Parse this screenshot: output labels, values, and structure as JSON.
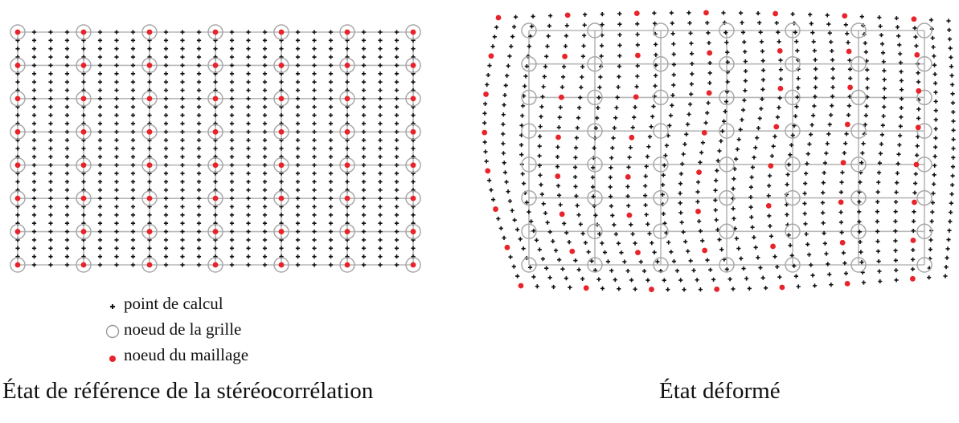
{
  "legend": {
    "calc_point": "point de calcul",
    "grid_node": "noeud de la grille",
    "mesh_node": "noeud du maillage"
  },
  "captions": {
    "reference": "État de référence de la stéréocorrélation",
    "deformed": "État déformé"
  },
  "colors": {
    "calc_point": "#111111",
    "grid": "#b8b8b8",
    "mesh_node": "#e8232a"
  },
  "icons": {
    "calc_point": "plus-dot-icon",
    "grid_node": "circle-outline-icon",
    "mesh_node": "red-dot-icon"
  }
}
